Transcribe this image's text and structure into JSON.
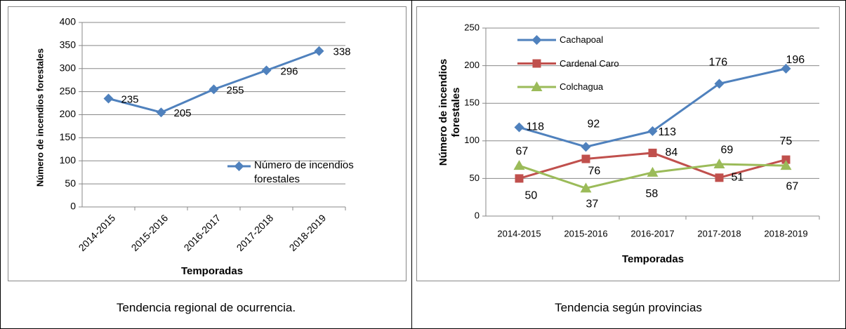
{
  "chart_data": [
    {
      "type": "line",
      "caption": "Tendencia regional de ocurrencia.",
      "y_label": "Número de incendios forestales",
      "x_label": "Temporadas",
      "categories": [
        "2014-2015",
        "2015-2016",
        "2016-2017",
        "2017-2018",
        "2018-2019"
      ],
      "series": [
        {
          "name": "Número de incendios forestales",
          "color": "#4f81bd",
          "marker": "diamond",
          "values": [
            235,
            205,
            255,
            296,
            338
          ]
        }
      ],
      "ylim": [
        0,
        400
      ],
      "yticks": [
        0,
        50,
        100,
        150,
        200,
        250,
        300,
        350,
        400
      ],
      "grid": true,
      "legend": "right"
    },
    {
      "type": "line",
      "caption": "Tendencia según provincias",
      "y_label": "Número de incendios forestales",
      "x_label": "Temporadas",
      "categories": [
        "2014-2015",
        "2015-2016",
        "2016-2017",
        "2017-2018",
        "2018-2019"
      ],
      "series": [
        {
          "name": "Cachapoal",
          "color": "#4f81bd",
          "marker": "diamond",
          "values": [
            118,
            92,
            113,
            176,
            196
          ]
        },
        {
          "name": "Cardenal Caro",
          "color": "#c0504d",
          "marker": "square",
          "values": [
            50,
            76,
            84,
            51,
            75
          ]
        },
        {
          "name": "Colchagua",
          "color": "#9bbb59",
          "marker": "triangle",
          "values": [
            67,
            37,
            58,
            69,
            67
          ]
        }
      ],
      "ylim": [
        0,
        250
      ],
      "yticks": [
        0,
        50,
        100,
        150,
        200,
        250
      ],
      "grid": true,
      "legend": "top left"
    }
  ]
}
